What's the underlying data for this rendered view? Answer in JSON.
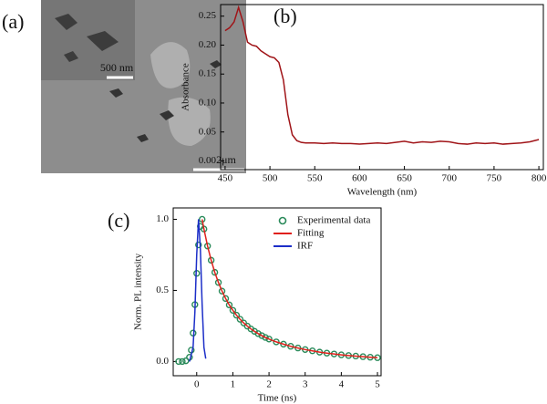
{
  "panel_labels": [
    "(a)",
    "(b)",
    "(c)"
  ],
  "sem_image": {
    "inset_scale": "500 nm",
    "main_scale": "2μm"
  },
  "chart_data": [
    {
      "type": "line",
      "x_label": "Wavelength (nm)",
      "y_label": "Absorbance",
      "color": "#a01418",
      "x": [
        450,
        455,
        460,
        465,
        470,
        475,
        480,
        485,
        490,
        495,
        500,
        505,
        510,
        515,
        520,
        525,
        530,
        535,
        540,
        550,
        560,
        570,
        580,
        590,
        600,
        610,
        620,
        630,
        640,
        650,
        660,
        670,
        680,
        690,
        700,
        710,
        720,
        730,
        740,
        750,
        760,
        770,
        780,
        790,
        800
      ],
      "values": [
        0.225,
        0.23,
        0.24,
        0.265,
        0.24,
        0.205,
        0.2,
        0.198,
        0.19,
        0.185,
        0.18,
        0.178,
        0.17,
        0.14,
        0.08,
        0.045,
        0.035,
        0.032,
        0.031,
        0.031,
        0.03,
        0.031,
        0.03,
        0.03,
        0.029,
        0.03,
        0.031,
        0.03,
        0.032,
        0.034,
        0.031,
        0.033,
        0.032,
        0.034,
        0.033,
        0.03,
        0.029,
        0.031,
        0.03,
        0.031,
        0.029,
        0.03,
        0.031,
        0.033,
        0.037
      ],
      "xlim": [
        445,
        805
      ],
      "xticks": [
        450,
        500,
        550,
        600,
        650,
        700,
        750,
        800
      ],
      "ylim": [
        -0.015,
        0.27
      ],
      "yticks": [
        {
          "value": 0,
          "label": "0.00"
        },
        0.05,
        {
          "value": 0.1,
          "label": "0.10"
        },
        0.15,
        {
          "value": 0.2,
          "label": "0.20"
        },
        0.25
      ]
    },
    {
      "type": "line",
      "x_label": "Time (ns)",
      "y_label": "Norm. PL intensity",
      "legend": "upper right",
      "series": [
        {
          "name": "Experimental data",
          "color": "#2a8a5a",
          "mode": "markers",
          "x": [
            -0.5,
            -0.4,
            -0.3,
            -0.2,
            -0.15,
            -0.1,
            -0.05,
            0,
            0.05,
            0.1,
            0.15,
            0.2,
            0.3,
            0.4,
            0.5,
            0.6,
            0.7,
            0.8,
            0.9,
            1.0,
            1.1,
            1.2,
            1.3,
            1.4,
            1.5,
            1.6,
            1.7,
            1.8,
            1.9,
            2.0,
            2.2,
            2.4,
            2.6,
            2.8,
            3.0,
            3.2,
            3.4,
            3.6,
            3.8,
            4.0,
            4.2,
            4.4,
            4.6,
            4.8,
            5.0
          ],
          "values": [
            0,
            0,
            0.005,
            0.03,
            0.08,
            0.2,
            0.4,
            0.62,
            0.82,
            0.95,
            1.0,
            0.932,
            0.812,
            0.712,
            0.627,
            0.556,
            0.495,
            0.443,
            0.398,
            0.36,
            0.326,
            0.297,
            0.271,
            0.249,
            0.229,
            0.212,
            0.196,
            0.182,
            0.169,
            0.158,
            0.138,
            0.122,
            0.107,
            0.095,
            0.084,
            0.075,
            0.066,
            0.059,
            0.053,
            0.047,
            0.042,
            0.038,
            0.034,
            0.03,
            0.027
          ]
        },
        {
          "name": "Fitting",
          "color": "#e0201c",
          "mode": "line",
          "x": [
            0.15,
            0.2,
            0.3,
            0.4,
            0.5,
            0.6,
            0.7,
            0.8,
            0.9,
            1.0,
            1.1,
            1.2,
            1.3,
            1.4,
            1.5,
            1.6,
            1.7,
            1.8,
            1.9,
            2.0,
            2.2,
            2.4,
            2.6,
            2.8,
            3.0,
            3.2,
            3.4,
            3.6,
            3.8,
            4.0,
            4.2,
            4.4,
            4.6,
            4.8,
            5.0
          ],
          "values": [
            1.0,
            0.932,
            0.812,
            0.712,
            0.627,
            0.556,
            0.495,
            0.443,
            0.398,
            0.36,
            0.326,
            0.297,
            0.271,
            0.249,
            0.229,
            0.212,
            0.196,
            0.182,
            0.169,
            0.158,
            0.138,
            0.122,
            0.107,
            0.095,
            0.084,
            0.075,
            0.066,
            0.059,
            0.053,
            0.047,
            0.042,
            0.038,
            0.034,
            0.03,
            0.027
          ]
        },
        {
          "name": "IRF",
          "color": "#1c2ec8",
          "mode": "line",
          "x": [
            -0.2,
            -0.1,
            -0.05,
            0,
            0.05,
            0.1,
            0.15,
            0.2,
            0.25
          ],
          "values": [
            0,
            0.1,
            0.35,
            0.75,
            1.0,
            0.8,
            0.4,
            0.1,
            0.02
          ]
        }
      ],
      "xlim": [
        -0.65,
        5.1
      ],
      "xticks": [
        0,
        1,
        2,
        3,
        4,
        5
      ],
      "ylim": [
        -0.1,
        1.08
      ],
      "yticks": [
        {
          "value": 0,
          "label": "0.0"
        },
        0.5,
        {
          "value": 1,
          "label": "1.0"
        }
      ]
    }
  ]
}
